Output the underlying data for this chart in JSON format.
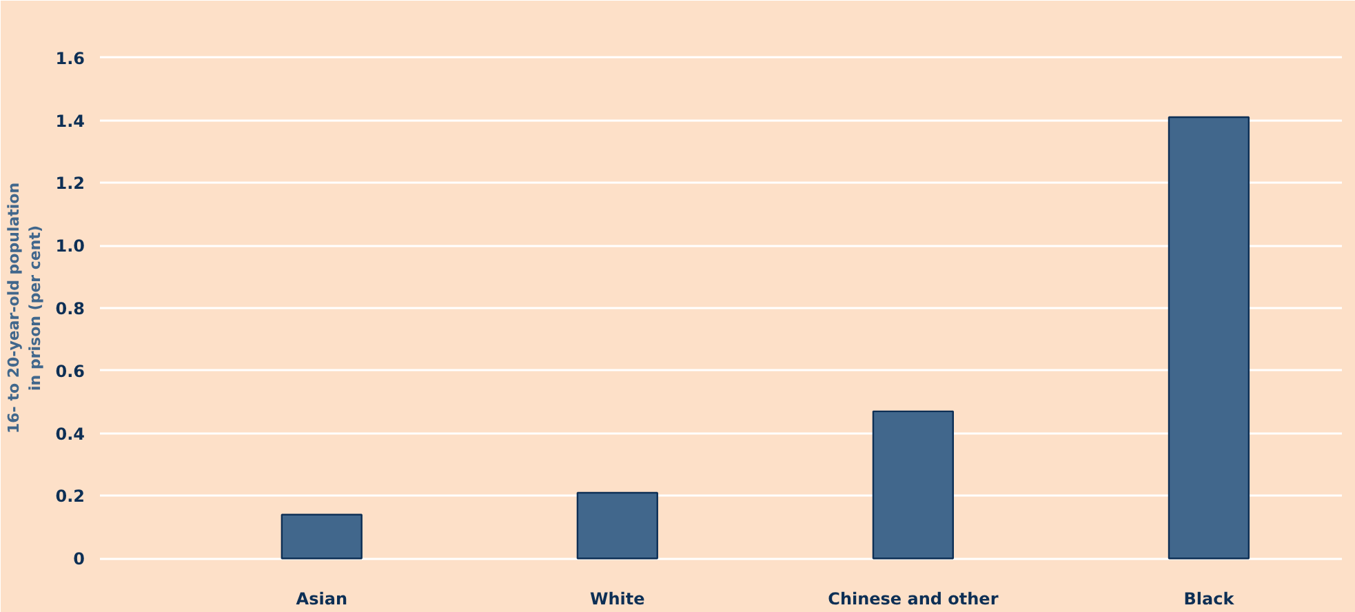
{
  "chart_data": {
    "type": "bar",
    "ylabel": "16- to 20-year-old population\nin prison (per cent)",
    "categories": [
      "Asian",
      "White",
      "Chinese and other",
      "Black"
    ],
    "values": [
      0.14,
      0.21,
      0.47,
      1.41
    ],
    "color": "#41678c",
    "ylim": [
      -0.05,
      1.65
    ],
    "yticks": [
      0,
      0.2,
      0.4,
      0.6,
      0.8,
      {
        "value": 1,
        "label": "1.0"
      },
      1.2,
      1.4,
      1.6
    ],
    "grid": "y"
  }
}
